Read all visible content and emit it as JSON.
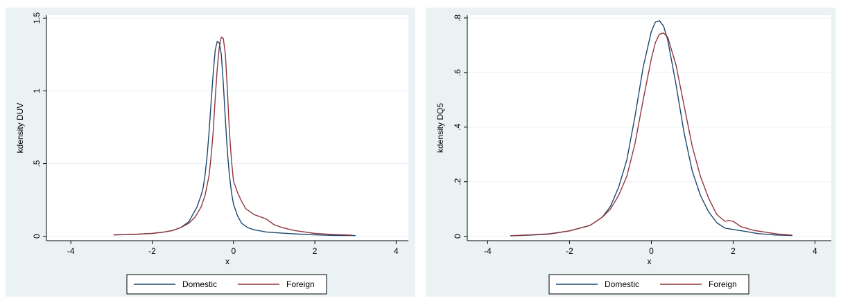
{
  "chart_data": [
    {
      "type": "line",
      "ylabel": "kdensity DUV",
      "xlabel": "x",
      "xlim": [
        -4.6,
        4.3
      ],
      "ylim": [
        -0.03,
        1.52
      ],
      "xticks": [
        -4,
        -2,
        0,
        2,
        4
      ],
      "yticks": [
        0,
        0.5,
        1,
        1.5
      ],
      "ytick_labels": [
        "0",
        ".5",
        "1",
        "1.5"
      ],
      "grid": true,
      "legend": "bottom",
      "series": [
        {
          "name": "Domestic",
          "color": "#1a476f",
          "x": [
            -2.95,
            -2.5,
            -2.0,
            -1.7,
            -1.5,
            -1.3,
            -1.1,
            -1.0,
            -0.9,
            -0.8,
            -0.75,
            -0.7,
            -0.65,
            -0.6,
            -0.55,
            -0.5,
            -0.45,
            -0.4,
            -0.35,
            -0.3,
            -0.25,
            -0.2,
            -0.15,
            -0.1,
            -0.05,
            0.0,
            0.1,
            0.2,
            0.35,
            0.5,
            0.8,
            1.2,
            1.6,
            2.0,
            2.5,
            3.0
          ],
          "y": [
            0.01,
            0.012,
            0.02,
            0.03,
            0.04,
            0.06,
            0.1,
            0.15,
            0.2,
            0.28,
            0.33,
            0.42,
            0.55,
            0.72,
            0.92,
            1.12,
            1.28,
            1.34,
            1.33,
            1.25,
            1.05,
            0.8,
            0.58,
            0.42,
            0.3,
            0.22,
            0.14,
            0.09,
            0.06,
            0.045,
            0.03,
            0.022,
            0.015,
            0.01,
            0.006,
            0.005
          ]
        },
        {
          "name": "Foreign",
          "color": "#90353b",
          "x": [
            -2.95,
            -2.5,
            -2.0,
            -1.7,
            -1.5,
            -1.3,
            -1.1,
            -0.95,
            -0.8,
            -0.7,
            -0.6,
            -0.55,
            -0.5,
            -0.45,
            -0.4,
            -0.35,
            -0.3,
            -0.25,
            -0.2,
            -0.15,
            -0.1,
            -0.05,
            0.0,
            0.1,
            0.2,
            0.3,
            0.5,
            0.7,
            0.8,
            1.0,
            1.2,
            1.5,
            2.0,
            2.5,
            2.9
          ],
          "y": [
            0.01,
            0.013,
            0.02,
            0.03,
            0.04,
            0.06,
            0.09,
            0.13,
            0.2,
            0.28,
            0.42,
            0.55,
            0.72,
            0.95,
            1.15,
            1.3,
            1.37,
            1.36,
            1.25,
            1.0,
            0.72,
            0.52,
            0.38,
            0.3,
            0.24,
            0.19,
            0.15,
            0.13,
            0.12,
            0.08,
            0.06,
            0.04,
            0.02,
            0.012,
            0.008
          ]
        }
      ]
    },
    {
      "type": "line",
      "ylabel": "kdensity DQ5",
      "xlabel": "x",
      "xlim": [
        -4.5,
        4.4
      ],
      "ylim": [
        -0.016,
        0.81
      ],
      "xticks": [
        -4,
        -2,
        0,
        2,
        4
      ],
      "yticks": [
        0,
        0.2,
        0.4,
        0.6,
        0.8
      ],
      "ytick_labels": [
        "0",
        ".2",
        ".4",
        ".6",
        ".8"
      ],
      "grid": true,
      "legend": "bottom",
      "series": [
        {
          "name": "Domestic",
          "color": "#1a476f",
          "x": [
            -3.45,
            -3.0,
            -2.5,
            -2.0,
            -1.5,
            -1.2,
            -1.0,
            -0.8,
            -0.6,
            -0.4,
            -0.2,
            0.0,
            0.1,
            0.2,
            0.3,
            0.4,
            0.6,
            0.8,
            1.0,
            1.2,
            1.4,
            1.6,
            1.8,
            2.0,
            2.3,
            2.6,
            3.0,
            3.45
          ],
          "y": [
            0.002,
            0.004,
            0.008,
            0.02,
            0.04,
            0.07,
            0.11,
            0.18,
            0.28,
            0.44,
            0.62,
            0.75,
            0.785,
            0.79,
            0.77,
            0.72,
            0.56,
            0.38,
            0.24,
            0.15,
            0.09,
            0.05,
            0.03,
            0.025,
            0.018,
            0.01,
            0.005,
            0.003
          ]
        },
        {
          "name": "Foreign",
          "color": "#90353b",
          "x": [
            -3.45,
            -3.0,
            -2.5,
            -2.0,
            -1.5,
            -1.2,
            -1.0,
            -0.8,
            -0.6,
            -0.4,
            -0.2,
            0.0,
            0.1,
            0.2,
            0.3,
            0.4,
            0.6,
            0.8,
            1.0,
            1.2,
            1.4,
            1.6,
            1.8,
            1.9,
            2.0,
            2.2,
            2.5,
            2.8,
            3.1,
            3.45
          ],
          "y": [
            0.002,
            0.005,
            0.009,
            0.02,
            0.04,
            0.07,
            0.1,
            0.15,
            0.22,
            0.34,
            0.5,
            0.65,
            0.71,
            0.74,
            0.745,
            0.73,
            0.63,
            0.48,
            0.33,
            0.22,
            0.14,
            0.08,
            0.055,
            0.058,
            0.055,
            0.035,
            0.022,
            0.015,
            0.008,
            0.004
          ]
        }
      ]
    }
  ]
}
